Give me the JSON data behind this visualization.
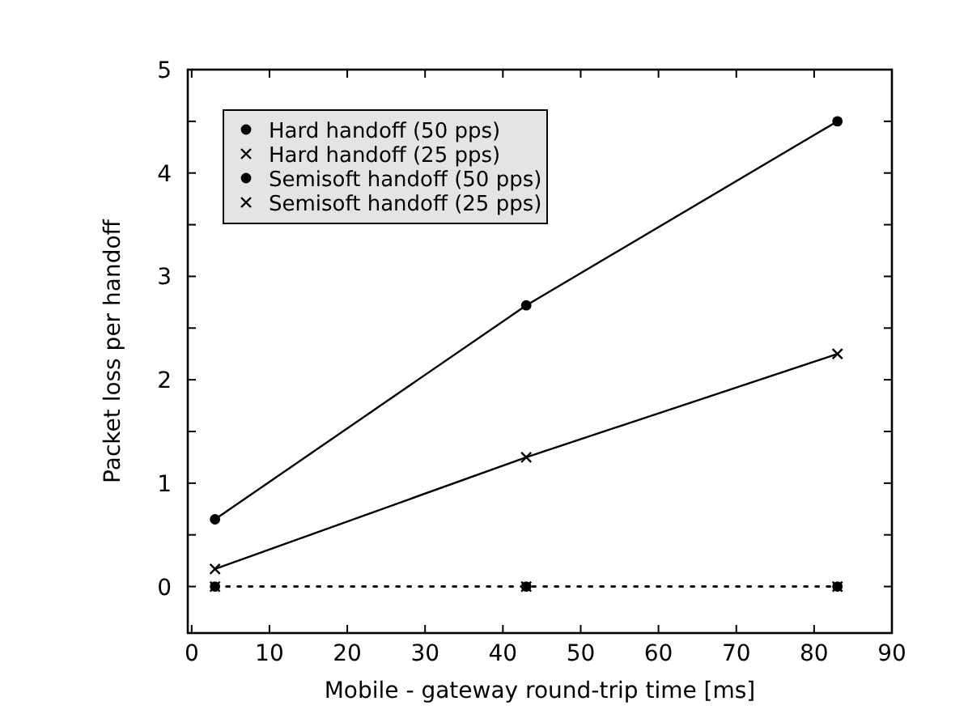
{
  "chart_data": {
    "type": "line",
    "xlabel": "Mobile - gateway round-trip time [ms]",
    "ylabel": "Packet loss per handoff",
    "xlim": [
      -0.5,
      90
    ],
    "xticks": [
      0,
      10,
      20,
      30,
      40,
      50,
      60,
      70,
      80,
      90
    ],
    "ylim": [
      -0.45,
      5
    ],
    "yticks": [
      0,
      {
        "value": 0.5,
        "label": null
      },
      1,
      {
        "value": 1.5,
        "label": null
      },
      2,
      {
        "value": 2.5,
        "label": null
      },
      3,
      {
        "value": 3.5,
        "label": null
      },
      4,
      {
        "value": 4.5,
        "label": null
      },
      5
    ],
    "x": [
      3,
      43,
      83
    ],
    "legend": "top left",
    "grid": false,
    "series": [
      {
        "name": "Hard handoff (50 pps)",
        "color": "#000000",
        "values": [
          0.65,
          2.72,
          4.5
        ],
        "marker": "circle",
        "line_style": "solid"
      },
      {
        "name": "Hard handoff (25 pps)",
        "color": "#000000",
        "values": [
          0.17,
          1.25,
          2.25
        ],
        "marker": "cross",
        "line_style": "solid"
      },
      {
        "name": "Semisoft handoff (50 pps)",
        "color": "#000000",
        "values": [
          0,
          0,
          0
        ],
        "marker": "circle",
        "line_style": "dotted"
      },
      {
        "name": "Semisoft handoff (25 pps)",
        "color": "#000000",
        "values": [
          0,
          0,
          0
        ],
        "marker": "cross",
        "line_style": "dotted"
      }
    ]
  }
}
